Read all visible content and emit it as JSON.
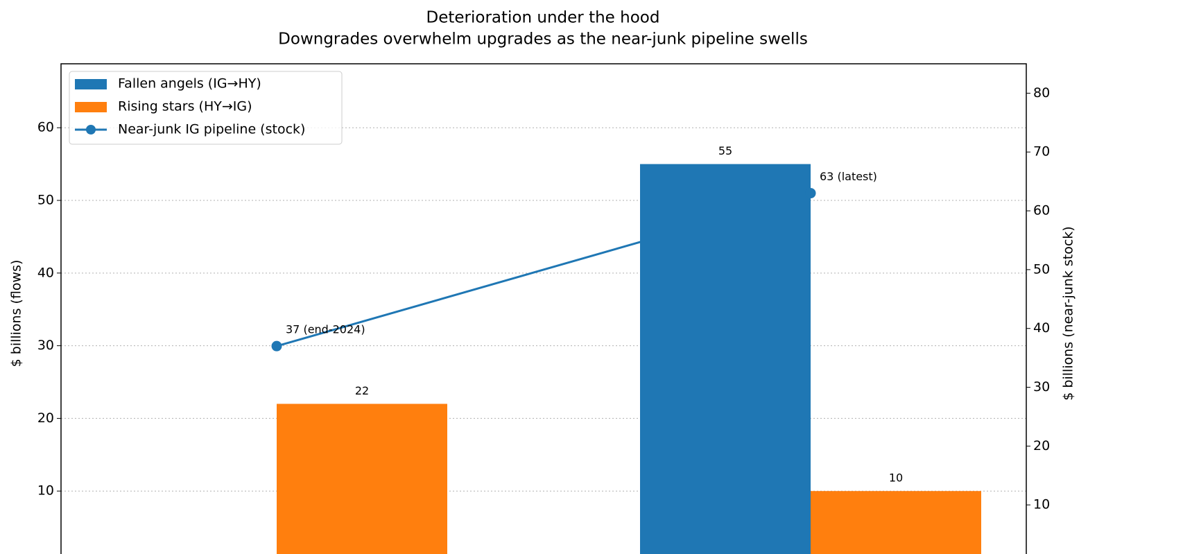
{
  "chart_data": {
    "type": "bar",
    "title": "Deterioration under the hood",
    "subtitle": "Downgrades overwhelm upgrades as the near-junk pipeline swells",
    "y_label": "$ billions (flows)",
    "y2_label": "$ billions (near-junk stock)",
    "series": [
      {
        "name": "Fallen angels (IG→HY)",
        "color": "#1f77b4",
        "values": [
          null,
          55
        ]
      },
      {
        "name": "Rising stars (HY→IG)",
        "color": "#ff7f0e",
        "values": [
          22,
          10
        ]
      },
      {
        "name": "Near-junk IG pipeline (stock)",
        "color": "#1f77b4",
        "type": "line",
        "axis": "y2",
        "values": [
          37,
          63
        ],
        "value_labels": [
          "37 (end-2024)",
          "63 (latest)"
        ]
      }
    ],
    "ylim": [
      0,
      68.8
    ],
    "yticks": [
      10,
      20,
      30,
      40,
      50,
      60
    ],
    "y2lim": [
      0,
      85
    ],
    "y2ticks": [
      10,
      20,
      30,
      40,
      50,
      60,
      70,
      80
    ],
    "grid": true,
    "legend": "upper left"
  }
}
